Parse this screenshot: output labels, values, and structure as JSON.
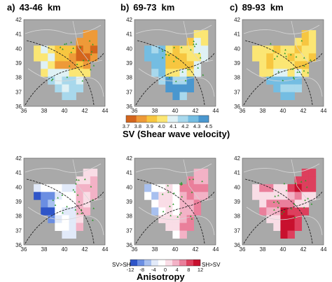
{
  "panels": [
    {
      "id": "a",
      "label": "a)",
      "depth": "43-46",
      "unit": "km"
    },
    {
      "id": "b",
      "label": "b)",
      "depth": "69-73",
      "unit": "km"
    },
    {
      "id": "c",
      "label": "c)",
      "depth": "89-93",
      "unit": "km"
    }
  ],
  "axes": {
    "x_ticks": [
      "36",
      "38",
      "40",
      "42",
      "44"
    ],
    "y_ticks": [
      "36",
      "37",
      "38",
      "39",
      "40",
      "41",
      "42"
    ]
  },
  "sv_colorbar": {
    "ticks": [
      "3.7",
      "3.8",
      "3.9",
      "4.0",
      "4.1",
      "4.2",
      "4.3",
      "4.5"
    ],
    "title": "SV  (Shear wave velocity)",
    "colors": [
      "#d4651c",
      "#ee9a38",
      "#f7c640",
      "#fbe674",
      "#dff1f5",
      "#a8d8ec",
      "#74bde2",
      "#4a97cf"
    ]
  },
  "aniso_colorbar": {
    "ticks": [
      "-12",
      "-8",
      "-4",
      "0",
      "4",
      "8",
      "12"
    ],
    "left_label": "SV>SH",
    "right_label": "SH>SV",
    "title": "Anisotropy",
    "colors": [
      "#2f55c8",
      "#6b8ee2",
      "#a8c0ef",
      "#e2eaf9",
      "#ffffff",
      "#f9dde6",
      "#f3b2c6",
      "#ea7f9b",
      "#dd3f5d",
      "#c8102e"
    ]
  },
  "colors": {
    "map_background": "#a9a9a9",
    "border_line": "#d6d6d6",
    "fault_line": "#202020",
    "station_marker": "#2a9a2a"
  }
}
